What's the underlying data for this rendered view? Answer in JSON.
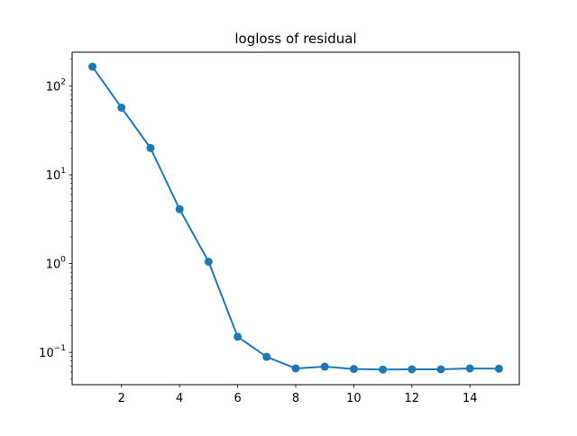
{
  "chart_data": {
    "type": "line",
    "title": "logloss of residual",
    "xlabel": "",
    "ylabel": "",
    "xlim": [
      0.3,
      15.7
    ],
    "ylim": [
      0.0433,
      240
    ],
    "yscale": "log",
    "grid": false,
    "marker": "circle",
    "x_ticks": [
      2,
      4,
      6,
      8,
      10,
      12,
      14
    ],
    "y_ticks": [
      {
        "value": 0.1,
        "base": "10",
        "exponent": "−1"
      },
      {
        "value": 1,
        "base": "10",
        "exponent": "0"
      },
      {
        "value": 10,
        "base": "10",
        "exponent": "1"
      },
      {
        "value": 100,
        "base": "10",
        "exponent": "2"
      }
    ],
    "series": [
      {
        "color": "#1f77b4",
        "x": [
          1,
          2,
          3,
          4,
          5,
          6,
          7,
          8,
          9,
          10,
          11,
          12,
          13,
          14,
          15
        ],
        "y": [
          165,
          57,
          20,
          4.1,
          1.05,
          0.15,
          0.089,
          0.066,
          0.069,
          0.065,
          0.064,
          0.0645,
          0.0645,
          0.066,
          0.0655
        ]
      }
    ]
  }
}
